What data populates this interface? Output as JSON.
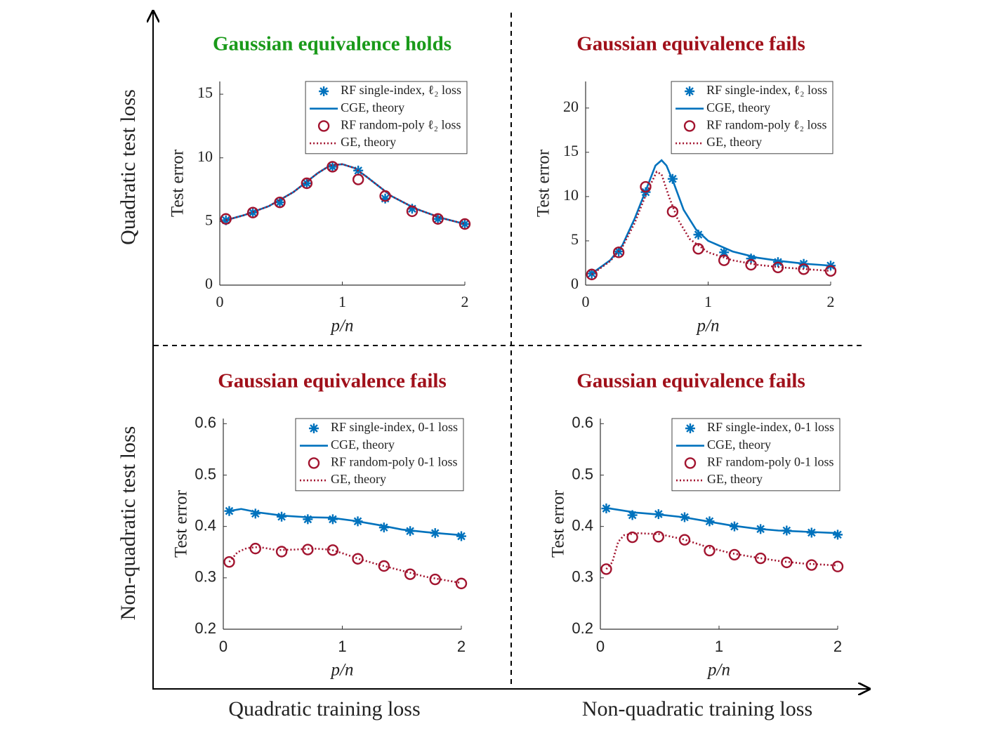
{
  "axis_labels": {
    "vertical_top": "Quadratic test loss",
    "vertical_bottom": "Non-quadratic test loss",
    "horizontal_left": "Quadratic training loss",
    "horizontal_right": "Non-quadratic training loss"
  },
  "chart_data": [
    {
      "type": "line",
      "title": "Gaussian equivalence holds",
      "title_color": "#1a9a1a",
      "xlabel": "p/n",
      "ylabel": "Test error",
      "xlim": [
        0,
        2
      ],
      "xticks": [
        0,
        1,
        2
      ],
      "ylim": [
        0,
        16
      ],
      "yticks": [
        0,
        5,
        10,
        15
      ],
      "grid": false,
      "legend": "northeast",
      "series": [
        {
          "name": "RF single-index, ℓ₂ loss",
          "color": "#0072bd",
          "marker": "star",
          "line": "none",
          "x": [
            0.05,
            0.27,
            0.49,
            0.71,
            0.92,
            1.13,
            1.35,
            1.57,
            1.78,
            2.0
          ],
          "values": [
            5.1,
            5.7,
            6.5,
            8.0,
            9.3,
            9.0,
            6.8,
            6.0,
            5.2,
            4.8
          ]
        },
        {
          "name": "CGE, theory",
          "color": "#0072bd",
          "marker": "none",
          "line": "solid",
          "x": [
            0.05,
            0.2,
            0.4,
            0.6,
            0.8,
            0.9,
            1.0,
            1.1,
            1.2,
            1.4,
            1.6,
            1.8,
            2.0
          ],
          "values": [
            5.1,
            5.5,
            6.2,
            7.3,
            8.8,
            9.4,
            9.5,
            9.2,
            8.5,
            7.0,
            6.0,
            5.3,
            4.8
          ]
        },
        {
          "name": "RF random-poly ℓ₂ loss",
          "color": "#a2142f",
          "marker": "circle",
          "line": "none",
          "x": [
            0.05,
            0.27,
            0.49,
            0.71,
            0.92,
            1.13,
            1.35,
            1.57,
            1.78,
            2.0
          ],
          "values": [
            5.2,
            5.7,
            6.5,
            8.0,
            9.3,
            8.3,
            7.0,
            5.8,
            5.2,
            4.8
          ]
        },
        {
          "name": "GE, theory",
          "color": "#a2142f",
          "marker": "none",
          "line": "dotted",
          "x": [
            0.05,
            0.2,
            0.4,
            0.6,
            0.8,
            0.9,
            1.0,
            1.1,
            1.2,
            1.4,
            1.6,
            1.8,
            2.0
          ],
          "values": [
            5.1,
            5.5,
            6.2,
            7.3,
            8.8,
            9.4,
            9.5,
            9.2,
            8.5,
            7.0,
            6.0,
            5.3,
            4.8
          ]
        }
      ]
    },
    {
      "type": "line",
      "title": "Gaussian equivalence fails",
      "title_color": "#a0101a",
      "xlabel": "p/n",
      "ylabel": "Test error",
      "xlim": [
        0,
        2
      ],
      "xticks": [
        0,
        1,
        2
      ],
      "ylim": [
        0,
        23
      ],
      "yticks": [
        0,
        5,
        10,
        15,
        20
      ],
      "grid": false,
      "legend": "northeast",
      "series": [
        {
          "name": "RF single-index, ℓ₂ loss",
          "color": "#0072bd",
          "marker": "star",
          "line": "none",
          "x": [
            0.05,
            0.27,
            0.49,
            0.71,
            0.92,
            1.13,
            1.35,
            1.57,
            1.78,
            2.0
          ],
          "values": [
            1.3,
            3.8,
            10.5,
            12.0,
            5.7,
            3.7,
            3.0,
            2.6,
            2.4,
            2.2
          ]
        },
        {
          "name": "CGE, theory",
          "color": "#0072bd",
          "marker": "none",
          "line": "solid",
          "x": [
            0.05,
            0.2,
            0.3,
            0.4,
            0.5,
            0.57,
            0.62,
            0.66,
            0.72,
            0.8,
            0.9,
            1.0,
            1.2,
            1.4,
            1.6,
            1.8,
            2.0
          ],
          "values": [
            1.3,
            2.8,
            4.5,
            7.5,
            11,
            13.5,
            14.1,
            13.5,
            11.5,
            8.5,
            6.3,
            5.0,
            3.8,
            3.1,
            2.7,
            2.4,
            2.2
          ]
        },
        {
          "name": "RF random-poly ℓ₂ loss",
          "color": "#a2142f",
          "marker": "circle",
          "line": "none",
          "x": [
            0.05,
            0.27,
            0.49,
            0.71,
            0.92,
            1.13,
            1.35,
            1.57,
            1.78,
            2.0
          ],
          "values": [
            1.2,
            3.7,
            11.1,
            8.3,
            4.1,
            2.8,
            2.3,
            2.0,
            1.8,
            1.6
          ]
        },
        {
          "name": "GE, theory",
          "color": "#a2142f",
          "marker": "none",
          "line": "dotted",
          "x": [
            0.05,
            0.2,
            0.3,
            0.4,
            0.5,
            0.58,
            0.62,
            0.68,
            0.75,
            0.85,
            1.0,
            1.2,
            1.4,
            1.6,
            1.8,
            2.0
          ],
          "values": [
            1.2,
            2.7,
            4.3,
            7.0,
            10.5,
            12.8,
            12.5,
            10.0,
            7.5,
            5.2,
            3.7,
            2.8,
            2.3,
            2.0,
            1.8,
            1.6
          ]
        }
      ]
    },
    {
      "type": "line",
      "title": "Gaussian equivalence fails",
      "title_color": "#a0101a",
      "xlabel": "p/n",
      "ylabel": "Test error",
      "xlim": [
        0,
        2
      ],
      "xticks": [
        0,
        1,
        2
      ],
      "ylim": [
        0.2,
        0.61
      ],
      "yticks": [
        0.2,
        0.3,
        0.4,
        0.5,
        0.6
      ],
      "grid": false,
      "legend": "northeast",
      "series": [
        {
          "name": "RF single-index, 0-1 loss",
          "color": "#0072bd",
          "marker": "star",
          "line": "none",
          "x": [
            0.05,
            0.27,
            0.49,
            0.71,
            0.92,
            1.13,
            1.35,
            1.57,
            1.78,
            2.0
          ],
          "values": [
            0.43,
            0.425,
            0.419,
            0.414,
            0.414,
            0.41,
            0.398,
            0.391,
            0.387,
            0.381
          ]
        },
        {
          "name": "CGE, theory",
          "color": "#0072bd",
          "marker": "none",
          "line": "solid",
          "x": [
            0.05,
            0.15,
            0.3,
            0.5,
            0.7,
            0.9,
            1.1,
            1.3,
            1.5,
            1.7,
            1.85,
            2.0
          ],
          "values": [
            0.43,
            0.434,
            0.427,
            0.421,
            0.418,
            0.417,
            0.411,
            0.403,
            0.394,
            0.389,
            0.386,
            0.383
          ]
        },
        {
          "name": "RF random-poly 0-1 loss",
          "color": "#a2142f",
          "marker": "circle",
          "line": "none",
          "x": [
            0.05,
            0.27,
            0.49,
            0.71,
            0.92,
            1.13,
            1.35,
            1.57,
            1.78,
            2.0
          ],
          "values": [
            0.331,
            0.357,
            0.351,
            0.355,
            0.354,
            0.337,
            0.323,
            0.307,
            0.297,
            0.289
          ]
        },
        {
          "name": "GE, theory",
          "color": "#a2142f",
          "marker": "none",
          "line": "dotted",
          "x": [
            0.05,
            0.12,
            0.2,
            0.3,
            0.45,
            0.6,
            0.75,
            0.9,
            1.0,
            1.15,
            1.3,
            1.5,
            1.7,
            1.85,
            2.0
          ],
          "values": [
            0.331,
            0.35,
            0.358,
            0.36,
            0.354,
            0.355,
            0.357,
            0.355,
            0.348,
            0.336,
            0.326,
            0.314,
            0.302,
            0.296,
            0.29
          ]
        }
      ]
    },
    {
      "type": "line",
      "title": "Gaussian equivalence fails",
      "title_color": "#a0101a",
      "xlabel": "p/n",
      "ylabel": "Test error",
      "xlim": [
        0,
        2
      ],
      "xticks": [
        0,
        1,
        2
      ],
      "ylim": [
        0.2,
        0.61
      ],
      "yticks": [
        0.2,
        0.3,
        0.4,
        0.5,
        0.6
      ],
      "grid": false,
      "legend": "northeast",
      "series": [
        {
          "name": "RF single-index, 0-1 loss",
          "color": "#0072bd",
          "marker": "star",
          "line": "none",
          "x": [
            0.05,
            0.27,
            0.49,
            0.71,
            0.92,
            1.13,
            1.35,
            1.57,
            1.78,
            2.0
          ],
          "values": [
            0.435,
            0.422,
            0.424,
            0.418,
            0.41,
            0.4,
            0.395,
            0.392,
            0.388,
            0.384
          ]
        },
        {
          "name": "CGE, theory",
          "color": "#0072bd",
          "marker": "none",
          "line": "solid",
          "x": [
            0.05,
            0.3,
            0.5,
            0.7,
            0.9,
            1.1,
            1.3,
            1.5,
            1.7,
            2.0
          ],
          "values": [
            0.436,
            0.427,
            0.423,
            0.418,
            0.41,
            0.402,
            0.396,
            0.392,
            0.39,
            0.387
          ]
        },
        {
          "name": "RF random-poly 0-1 loss",
          "color": "#a2142f",
          "marker": "circle",
          "line": "none",
          "x": [
            0.05,
            0.27,
            0.49,
            0.71,
            0.92,
            1.13,
            1.35,
            1.57,
            1.78,
            2.0
          ],
          "values": [
            0.317,
            0.379,
            0.38,
            0.374,
            0.353,
            0.345,
            0.338,
            0.33,
            0.325,
            0.322
          ]
        },
        {
          "name": "GE, theory",
          "color": "#a2142f",
          "marker": "none",
          "line": "dotted",
          "x": [
            0.05,
            0.1,
            0.15,
            0.2,
            0.3,
            0.5,
            0.7,
            0.9,
            1.1,
            1.3,
            1.5,
            1.7,
            2.0
          ],
          "values": [
            0.317,
            0.33,
            0.37,
            0.383,
            0.387,
            0.385,
            0.375,
            0.36,
            0.348,
            0.34,
            0.333,
            0.328,
            0.324
          ]
        }
      ]
    }
  ]
}
